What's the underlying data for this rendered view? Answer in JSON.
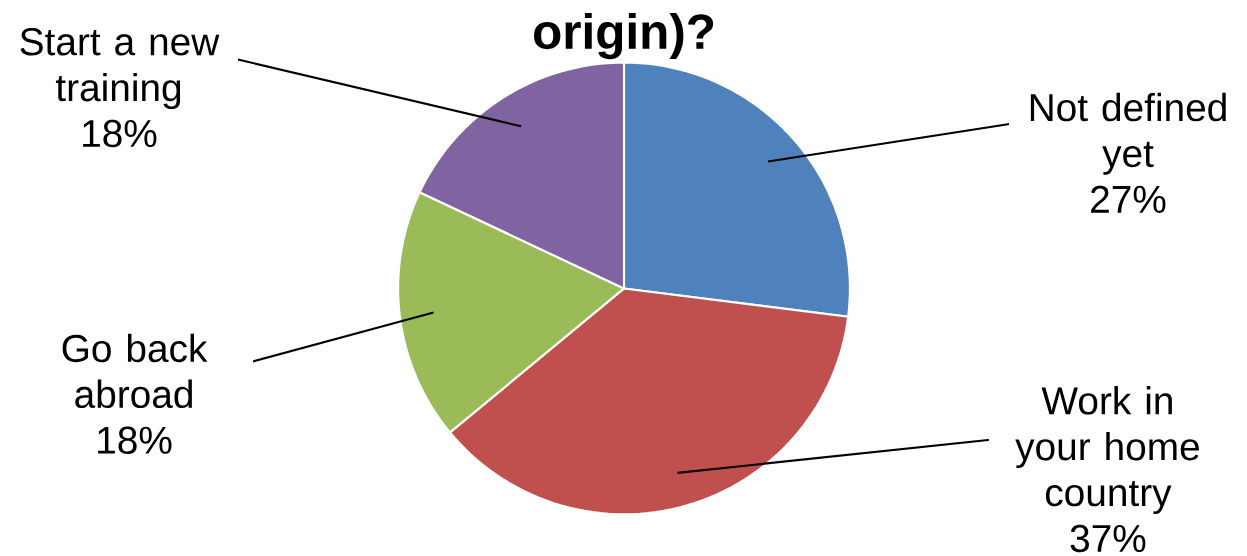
{
  "chart_data": {
    "type": "pie",
    "title": "origin)?",
    "categories": [
      "Not defined yet",
      "Work in your home country",
      "Go back abroad",
      "Start a new training"
    ],
    "values": [
      27,
      37,
      18,
      18
    ],
    "colors": [
      "#4f81bd",
      "#c0504d",
      "#9bbb59",
      "#8064a2"
    ],
    "value_labels": [
      "27%",
      "37%",
      "18%",
      "18%"
    ]
  }
}
